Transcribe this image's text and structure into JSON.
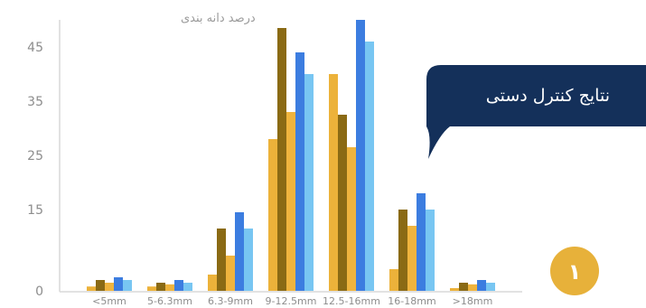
{
  "chart_data": {
    "type": "bar",
    "ylabel": "درصد دانه بندی",
    "yticks": [
      0,
      15,
      25,
      35,
      45
    ],
    "ylim": [
      0,
      50
    ],
    "grid": false,
    "categories": [
      "<5mm",
      "5-6.3mm",
      "6.3-9mm",
      "9-12.5mm",
      "12.5-16mm",
      "16-18mm",
      ">18mm"
    ],
    "series": [
      {
        "color": "#ecb23a",
        "values": [
          0.8,
          0.8,
          3.0,
          28.0,
          40.0,
          4.0,
          0.5
        ]
      },
      {
        "color": "#8a6a14",
        "values": [
          2.0,
          1.5,
          11.5,
          48.5,
          32.5,
          15.0,
          1.5
        ]
      },
      {
        "color": "#efb43e",
        "values": [
          1.5,
          1.2,
          6.5,
          33.0,
          26.5,
          12.0,
          1.2
        ]
      },
      {
        "color": "#3c7de0",
        "values": [
          2.5,
          2.0,
          14.5,
          44.0,
          50.0,
          18.0,
          2.0
        ]
      },
      {
        "color": "#78c6f2",
        "values": [
          2.0,
          1.5,
          11.5,
          40.0,
          46.0,
          15.0,
          1.5
        ]
      }
    ]
  },
  "callout": {
    "text": "نتایج کنترل دستی",
    "color": "#14305a"
  },
  "badge": {
    "text": "۱",
    "color": "#e7b13a"
  }
}
